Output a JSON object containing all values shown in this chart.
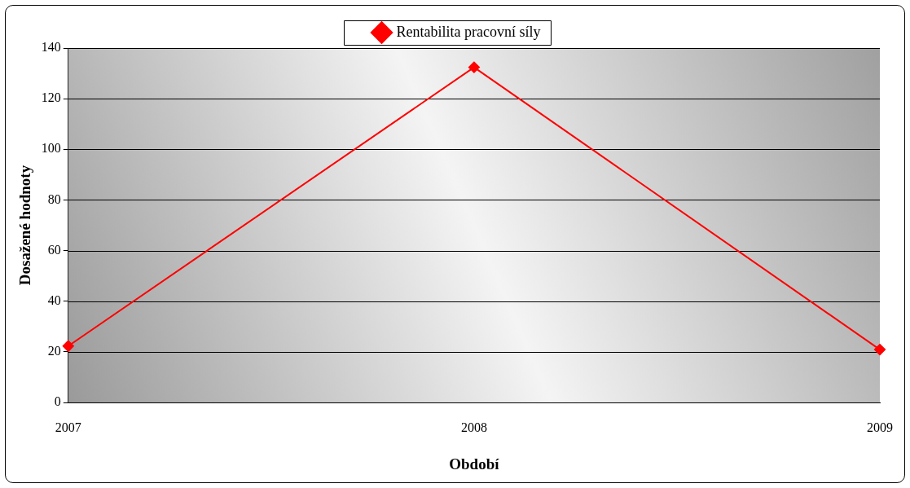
{
  "chart_data": {
    "type": "line",
    "xlabel": "Období",
    "ylabel": "Dosažené hodnoty",
    "categories": [
      "2007",
      "2008",
      "2009"
    ],
    "series": [
      {
        "name": "Rentabilita pracovní síly",
        "color": "#ff0000",
        "values": [
          22.3,
          132.4,
          20.9
        ]
      }
    ],
    "ylim": [
      0,
      140
    ],
    "yticks": [
      0,
      20,
      40,
      60,
      80,
      100,
      120,
      140
    ],
    "grid": "y",
    "legend": "top",
    "marker": "diamond",
    "line_style": "solid"
  }
}
